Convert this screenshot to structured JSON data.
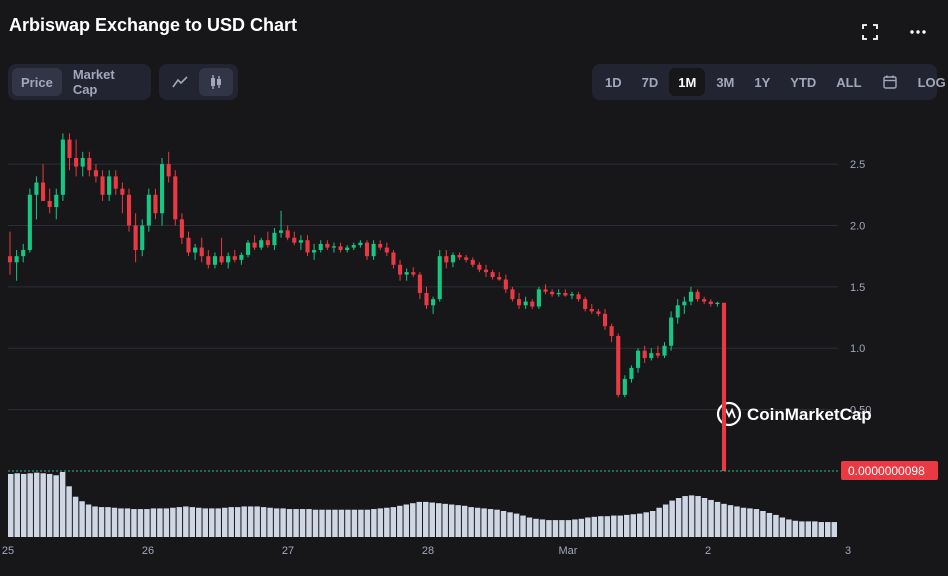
{
  "title": "Arbiswap Exchange to USD Chart",
  "icons": {
    "fullscreen": "fullscreen-icon",
    "more": "more-icon"
  },
  "tabs_metric": [
    {
      "label": "Price",
      "active": true
    },
    {
      "label": "Market Cap",
      "active": false
    }
  ],
  "tabs_type": [
    {
      "icon": "line-chart-icon",
      "active": false
    },
    {
      "icon": "candlestick-icon",
      "active": true
    }
  ],
  "tabs_range": [
    {
      "label": "1D",
      "active": false
    },
    {
      "label": "7D",
      "active": false
    },
    {
      "label": "1M",
      "active": true
    },
    {
      "label": "3M",
      "active": false
    },
    {
      "label": "1Y",
      "active": false
    },
    {
      "label": "YTD",
      "active": false
    },
    {
      "label": "ALL",
      "active": false
    },
    {
      "label": "",
      "icon": "calendar-icon",
      "active": false
    },
    {
      "label": "LOG",
      "active": false
    }
  ],
  "watermark": "CoinMarketCap",
  "current_price_label": "0.0000000098",
  "colors": {
    "up": "#16c784",
    "down": "#ea3943",
    "bg": "#17171a",
    "grid": "#2b2e38",
    "axis_text": "#a1a7bb",
    "volume": "#cfd6e4"
  },
  "chart_data": {
    "type": "candlestick",
    "y_ticks": [
      0.5,
      1.0,
      1.5,
      2.0,
      2.5
    ],
    "y_tick_labels": [
      "0.50",
      "1.0",
      "1.5",
      "2.0",
      "2.5"
    ],
    "ylim": [
      0.0,
      2.9
    ],
    "x_ticks": [
      {
        "label": "25",
        "index": 0
      },
      {
        "label": "26",
        "index": 24
      },
      {
        "label": "27",
        "index": 48
      },
      {
        "label": "28",
        "index": 72
      },
      {
        "label": "Mar",
        "index": 96
      },
      {
        "label": "2",
        "index": 120
      },
      {
        "label": "3",
        "index": 144
      }
    ],
    "candles": [
      [
        1.75,
        1.95,
        1.6,
        1.7
      ],
      [
        1.7,
        1.8,
        1.55,
        1.75
      ],
      [
        1.75,
        1.85,
        1.7,
        1.8
      ],
      [
        1.8,
        2.3,
        1.78,
        2.25
      ],
      [
        2.25,
        2.4,
        2.05,
        2.35
      ],
      [
        2.35,
        2.5,
        2.2,
        2.2
      ],
      [
        2.2,
        2.3,
        2.1,
        2.15
      ],
      [
        2.15,
        2.3,
        2.05,
        2.25
      ],
      [
        2.25,
        2.75,
        2.2,
        2.7
      ],
      [
        2.7,
        2.75,
        2.45,
        2.55
      ],
      [
        2.55,
        2.7,
        2.4,
        2.48
      ],
      [
        2.48,
        2.6,
        2.4,
        2.55
      ],
      [
        2.55,
        2.6,
        2.4,
        2.45
      ],
      [
        2.45,
        2.5,
        2.35,
        2.4
      ],
      [
        2.4,
        2.45,
        2.2,
        2.25
      ],
      [
        2.25,
        2.45,
        2.2,
        2.4
      ],
      [
        2.4,
        2.45,
        2.25,
        2.3
      ],
      [
        2.3,
        2.35,
        2.1,
        2.25
      ],
      [
        2.25,
        2.3,
        1.95,
        2.0
      ],
      [
        2.0,
        2.1,
        1.7,
        1.8
      ],
      [
        1.8,
        2.05,
        1.75,
        2.0
      ],
      [
        2.0,
        2.3,
        1.95,
        2.25
      ],
      [
        2.25,
        2.3,
        2.05,
        2.1
      ],
      [
        2.1,
        2.55,
        2.0,
        2.5
      ],
      [
        2.5,
        2.6,
        2.35,
        2.4
      ],
      [
        2.4,
        2.45,
        2.0,
        2.05
      ],
      [
        2.05,
        2.1,
        1.85,
        1.9
      ],
      [
        1.9,
        1.95,
        1.75,
        1.78
      ],
      [
        1.78,
        1.85,
        1.72,
        1.82
      ],
      [
        1.82,
        1.9,
        1.7,
        1.75
      ],
      [
        1.75,
        1.8,
        1.65,
        1.68
      ],
      [
        1.68,
        1.78,
        1.65,
        1.75
      ],
      [
        1.75,
        1.9,
        1.68,
        1.7
      ],
      [
        1.7,
        1.78,
        1.65,
        1.75
      ],
      [
        1.75,
        1.8,
        1.7,
        1.72
      ],
      [
        1.72,
        1.78,
        1.68,
        1.76
      ],
      [
        1.76,
        1.88,
        1.74,
        1.86
      ],
      [
        1.86,
        1.92,
        1.8,
        1.82
      ],
      [
        1.82,
        1.9,
        1.8,
        1.88
      ],
      [
        1.88,
        1.95,
        1.82,
        1.84
      ],
      [
        1.84,
        1.98,
        1.8,
        1.94
      ],
      [
        1.94,
        2.12,
        1.9,
        1.96
      ],
      [
        1.96,
        2.0,
        1.88,
        1.9
      ],
      [
        1.9,
        1.95,
        1.84,
        1.86
      ],
      [
        1.86,
        1.92,
        1.8,
        1.88
      ],
      [
        1.88,
        1.92,
        1.75,
        1.78
      ],
      [
        1.78,
        1.85,
        1.72,
        1.8
      ],
      [
        1.8,
        1.88,
        1.78,
        1.85
      ],
      [
        1.85,
        1.88,
        1.8,
        1.82
      ],
      [
        1.82,
        1.86,
        1.78,
        1.83
      ],
      [
        1.83,
        1.86,
        1.78,
        1.8
      ],
      [
        1.8,
        1.84,
        1.78,
        1.82
      ],
      [
        1.82,
        1.86,
        1.8,
        1.84
      ],
      [
        1.84,
        1.88,
        1.82,
        1.86
      ],
      [
        1.86,
        1.88,
        1.72,
        1.75
      ],
      [
        1.75,
        1.88,
        1.72,
        1.85
      ],
      [
        1.85,
        1.88,
        1.8,
        1.82
      ],
      [
        1.82,
        1.86,
        1.75,
        1.78
      ],
      [
        1.78,
        1.8,
        1.65,
        1.68
      ],
      [
        1.68,
        1.72,
        1.55,
        1.6
      ],
      [
        1.6,
        1.65,
        1.55,
        1.62
      ],
      [
        1.62,
        1.66,
        1.58,
        1.6
      ],
      [
        1.6,
        1.62,
        1.4,
        1.45
      ],
      [
        1.45,
        1.5,
        1.32,
        1.35
      ],
      [
        1.35,
        1.42,
        1.28,
        1.4
      ],
      [
        1.4,
        1.8,
        1.38,
        1.75
      ],
      [
        1.75,
        1.8,
        1.65,
        1.7
      ],
      [
        1.7,
        1.78,
        1.66,
        1.76
      ],
      [
        1.76,
        1.78,
        1.72,
        1.74
      ],
      [
        1.74,
        1.76,
        1.7,
        1.72
      ],
      [
        1.72,
        1.74,
        1.66,
        1.68
      ],
      [
        1.68,
        1.7,
        1.62,
        1.64
      ],
      [
        1.64,
        1.68,
        1.58,
        1.62
      ],
      [
        1.62,
        1.64,
        1.56,
        1.58
      ],
      [
        1.58,
        1.62,
        1.55,
        1.56
      ],
      [
        1.56,
        1.6,
        1.45,
        1.48
      ],
      [
        1.48,
        1.5,
        1.38,
        1.4
      ],
      [
        1.4,
        1.45,
        1.32,
        1.35
      ],
      [
        1.35,
        1.42,
        1.32,
        1.38
      ],
      [
        1.38,
        1.4,
        1.32,
        1.34
      ],
      [
        1.34,
        1.5,
        1.32,
        1.48
      ],
      [
        1.48,
        1.52,
        1.44,
        1.46
      ],
      [
        1.46,
        1.48,
        1.42,
        1.44
      ],
      [
        1.44,
        1.48,
        1.42,
        1.45
      ],
      [
        1.45,
        1.48,
        1.42,
        1.43
      ],
      [
        1.43,
        1.46,
        1.4,
        1.44
      ],
      [
        1.44,
        1.46,
        1.38,
        1.4
      ],
      [
        1.4,
        1.42,
        1.3,
        1.32
      ],
      [
        1.32,
        1.36,
        1.28,
        1.3
      ],
      [
        1.3,
        1.32,
        1.26,
        1.28
      ],
      [
        1.28,
        1.32,
        1.15,
        1.18
      ],
      [
        1.18,
        1.2,
        1.05,
        1.1
      ],
      [
        1.1,
        1.12,
        0.6,
        0.62
      ],
      [
        0.62,
        0.78,
        0.6,
        0.75
      ],
      [
        0.75,
        0.86,
        0.72,
        0.84
      ],
      [
        0.84,
        1.0,
        0.8,
        0.98
      ],
      [
        0.98,
        1.02,
        0.88,
        0.92
      ],
      [
        0.92,
        1.0,
        0.9,
        0.96
      ],
      [
        0.96,
        1.02,
        0.92,
        0.94
      ],
      [
        0.94,
        1.05,
        0.92,
        1.02
      ],
      [
        1.02,
        1.3,
        0.98,
        1.25
      ],
      [
        1.25,
        1.4,
        1.2,
        1.35
      ],
      [
        1.35,
        1.42,
        1.28,
        1.38
      ],
      [
        1.38,
        1.5,
        1.35,
        1.46
      ],
      [
        1.46,
        1.48,
        1.38,
        1.4
      ],
      [
        1.4,
        1.42,
        1.36,
        1.38
      ],
      [
        1.38,
        1.4,
        1.34,
        1.36
      ],
      [
        1.36,
        1.38,
        1.34,
        1.37
      ],
      [
        1.37,
        1.37,
        0.0,
        0.0
      ]
    ],
    "volume": [
      0.97,
      0.98,
      0.97,
      0.98,
      0.99,
      0.98,
      0.97,
      0.95,
      1.0,
      0.78,
      0.62,
      0.55,
      0.5,
      0.47,
      0.46,
      0.46,
      0.45,
      0.44,
      0.44,
      0.43,
      0.43,
      0.43,
      0.44,
      0.44,
      0.44,
      0.45,
      0.46,
      0.47,
      0.46,
      0.45,
      0.44,
      0.44,
      0.44,
      0.45,
      0.46,
      0.46,
      0.47,
      0.47,
      0.47,
      0.46,
      0.45,
      0.44,
      0.44,
      0.43,
      0.43,
      0.43,
      0.43,
      0.42,
      0.42,
      0.42,
      0.42,
      0.42,
      0.42,
      0.42,
      0.42,
      0.42,
      0.43,
      0.44,
      0.45,
      0.46,
      0.48,
      0.5,
      0.52,
      0.54,
      0.54,
      0.53,
      0.52,
      0.51,
      0.5,
      0.49,
      0.48,
      0.46,
      0.45,
      0.44,
      0.43,
      0.42,
      0.4,
      0.38,
      0.36,
      0.33,
      0.3,
      0.28,
      0.27,
      0.26,
      0.26,
      0.26,
      0.26,
      0.27,
      0.28,
      0.3,
      0.31,
      0.32,
      0.32,
      0.33,
      0.33,
      0.34,
      0.35,
      0.36,
      0.38,
      0.4,
      0.45,
      0.5,
      0.56,
      0.6,
      0.63,
      0.64,
      0.63,
      0.6,
      0.57,
      0.54,
      0.51,
      0.49,
      0.47,
      0.45,
      0.44,
      0.43,
      0.4,
      0.37,
      0.34,
      0.3,
      0.27,
      0.25,
      0.24,
      0.24,
      0.24,
      0.23,
      0.23,
      0.23
    ]
  }
}
